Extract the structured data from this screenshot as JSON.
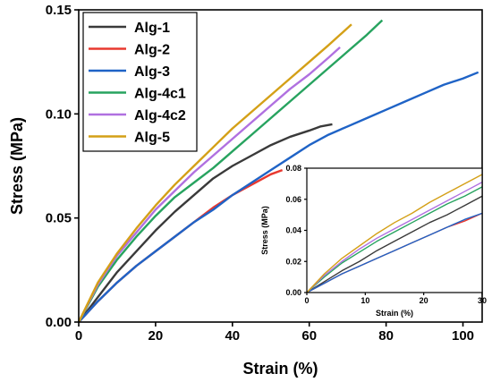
{
  "chart_data": [
    {
      "type": "line",
      "xlabel": "Strain (%)",
      "ylabel": "Stress (MPa)",
      "xlim": [
        0,
        105
      ],
      "ylim": [
        0,
        0.15
      ],
      "xticks": [
        0,
        20,
        40,
        60,
        80,
        100
      ],
      "yticks": [
        0.0,
        0.05,
        0.1,
        0.15
      ],
      "ytick_labels": [
        "0.00",
        "0.05",
        "0.10",
        "0.15"
      ],
      "legend_position": "top-left",
      "grid": false,
      "series": [
        {
          "name": "Alg-1",
          "color": "#3a3a3a",
          "x": [
            0,
            5,
            10,
            15,
            20,
            25,
            30,
            35,
            40,
            45,
            50,
            55,
            60,
            63,
            66
          ],
          "y": [
            0,
            0.012,
            0.024,
            0.034,
            0.044,
            0.053,
            0.061,
            0.069,
            0.075,
            0.08,
            0.085,
            0.089,
            0.092,
            0.094,
            0.095
          ]
        },
        {
          "name": "Alg-2",
          "color": "#e8382f",
          "x": [
            0,
            5,
            10,
            15,
            20,
            25,
            30,
            35,
            40,
            45,
            50,
            53
          ],
          "y": [
            0,
            0.01,
            0.019,
            0.027,
            0.034,
            0.041,
            0.048,
            0.055,
            0.061,
            0.066,
            0.071,
            0.073
          ]
        },
        {
          "name": "Alg-3",
          "color": "#1f63c6",
          "x": [
            0,
            5,
            10,
            15,
            20,
            25,
            30,
            35,
            40,
            45,
            50,
            55,
            60,
            65,
            70,
            75,
            80,
            85,
            90,
            95,
            100,
            104
          ],
          "y": [
            0,
            0.01,
            0.019,
            0.027,
            0.034,
            0.041,
            0.048,
            0.054,
            0.061,
            0.067,
            0.073,
            0.079,
            0.085,
            0.09,
            0.094,
            0.098,
            0.102,
            0.106,
            0.11,
            0.114,
            0.117,
            0.12
          ]
        },
        {
          "name": "Alg-4c1",
          "color": "#27a35f",
          "x": [
            0,
            5,
            10,
            15,
            20,
            25,
            30,
            35,
            40,
            45,
            50,
            55,
            60,
            65,
            70,
            75,
            79
          ],
          "y": [
            0,
            0.017,
            0.03,
            0.041,
            0.051,
            0.06,
            0.067,
            0.074,
            0.082,
            0.09,
            0.098,
            0.106,
            0.114,
            0.122,
            0.13,
            0.138,
            0.145
          ]
        },
        {
          "name": "Alg-4c2",
          "color": "#b070e0",
          "x": [
            0,
            5,
            10,
            15,
            20,
            25,
            30,
            35,
            40,
            45,
            50,
            55,
            60,
            65,
            68
          ],
          "y": [
            0,
            0.018,
            0.032,
            0.043,
            0.054,
            0.063,
            0.072,
            0.08,
            0.088,
            0.096,
            0.104,
            0.112,
            0.119,
            0.127,
            0.132
          ]
        },
        {
          "name": "Alg-5",
          "color": "#d4a017",
          "x": [
            0,
            5,
            10,
            15,
            20,
            25,
            30,
            35,
            40,
            45,
            50,
            55,
            60,
            65,
            68,
            71
          ],
          "y": [
            0,
            0.019,
            0.033,
            0.045,
            0.056,
            0.066,
            0.075,
            0.084,
            0.093,
            0.101,
            0.109,
            0.117,
            0.125,
            0.133,
            0.138,
            0.143
          ]
        }
      ]
    },
    {
      "type": "line",
      "inset": true,
      "xlabel": "Strain (%)",
      "ylabel": "Stress (MPa)",
      "xlim": [
        0,
        30
      ],
      "ylim": [
        0,
        0.08
      ],
      "xticks": [
        0,
        10,
        20,
        30
      ],
      "yticks": [
        0.0,
        0.02,
        0.04,
        0.06,
        0.08
      ],
      "ytick_labels": [
        "0.00",
        "0.02",
        "0.04",
        "0.06",
        "0.08"
      ],
      "series": [
        {
          "name": "Alg-1",
          "color": "#3a3a3a",
          "x": [
            0,
            3,
            6,
            9,
            12,
            15,
            18,
            21,
            24,
            27,
            30
          ],
          "y": [
            0,
            0.007,
            0.014,
            0.02,
            0.027,
            0.033,
            0.039,
            0.045,
            0.05,
            0.056,
            0.062
          ]
        },
        {
          "name": "Alg-2",
          "color": "#e8382f",
          "x": [
            0,
            3,
            6,
            9,
            12,
            15,
            18,
            21,
            24,
            27,
            30
          ],
          "y": [
            0,
            0.006,
            0.012,
            0.017,
            0.022,
            0.027,
            0.032,
            0.037,
            0.042,
            0.046,
            0.051
          ]
        },
        {
          "name": "Alg-3",
          "color": "#1f63c6",
          "x": [
            0,
            3,
            6,
            9,
            12,
            15,
            18,
            21,
            24,
            27,
            30
          ],
          "y": [
            0,
            0.006,
            0.012,
            0.017,
            0.022,
            0.027,
            0.032,
            0.037,
            0.042,
            0.047,
            0.051
          ]
        },
        {
          "name": "Alg-4c1",
          "color": "#27a35f",
          "x": [
            0,
            3,
            6,
            9,
            12,
            15,
            18,
            21,
            24,
            27,
            30
          ],
          "y": [
            0,
            0.01,
            0.019,
            0.026,
            0.033,
            0.039,
            0.045,
            0.051,
            0.057,
            0.062,
            0.068
          ]
        },
        {
          "name": "Alg-4c2",
          "color": "#b070e0",
          "x": [
            0,
            3,
            6,
            9,
            12,
            15,
            18,
            21,
            24,
            27,
            30
          ],
          "y": [
            0,
            0.011,
            0.02,
            0.028,
            0.035,
            0.041,
            0.047,
            0.053,
            0.059,
            0.065,
            0.071
          ]
        },
        {
          "name": "Alg-5",
          "color": "#d4a017",
          "x": [
            0,
            3,
            6,
            9,
            12,
            15,
            18,
            21,
            24,
            27,
            30
          ],
          "y": [
            0,
            0.012,
            0.022,
            0.03,
            0.038,
            0.045,
            0.051,
            0.058,
            0.064,
            0.07,
            0.076
          ]
        }
      ]
    }
  ]
}
